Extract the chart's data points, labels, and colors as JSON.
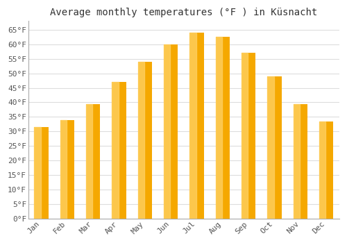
{
  "title": "Average monthly temperatures (°F ) in Küsnacht",
  "months": [
    "Jan",
    "Feb",
    "Mar",
    "Apr",
    "May",
    "Jun",
    "Jul",
    "Aug",
    "Sep",
    "Oct",
    "Nov",
    "Dec"
  ],
  "values": [
    31.5,
    34.0,
    39.5,
    47.0,
    54.0,
    60.0,
    64.0,
    62.5,
    57.0,
    49.0,
    39.5,
    33.5
  ],
  "bar_color_dark": "#F5A800",
  "bar_color_light": "#FFD060",
  "ylim": [
    0,
    68
  ],
  "yticks": [
    0,
    5,
    10,
    15,
    20,
    25,
    30,
    35,
    40,
    45,
    50,
    55,
    60,
    65
  ],
  "ytick_labels": [
    "0°F",
    "5°F",
    "10°F",
    "15°F",
    "20°F",
    "25°F",
    "30°F",
    "35°F",
    "40°F",
    "45°F",
    "50°F",
    "55°F",
    "60°F",
    "65°F"
  ],
  "background_color": "#ffffff",
  "grid_color": "#dddddd",
  "title_fontsize": 10,
  "tick_fontsize": 8,
  "font_family": "monospace",
  "bar_width": 0.55
}
